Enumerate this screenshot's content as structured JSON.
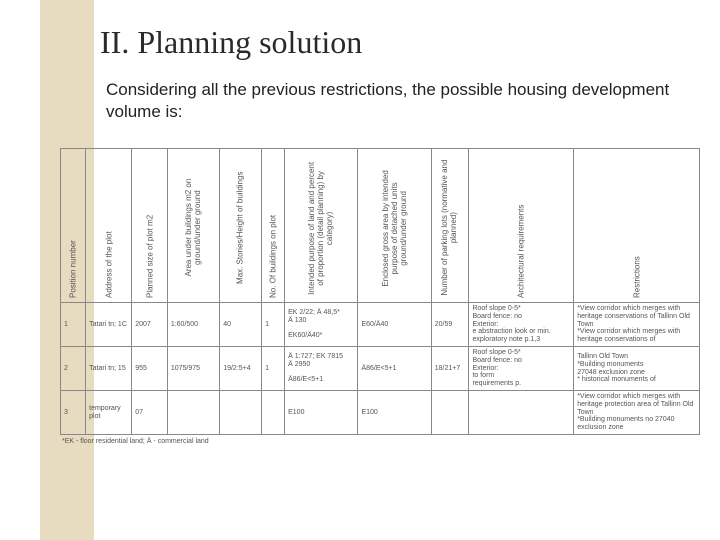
{
  "title": "II. Planning solution",
  "intro": "Considering all the previous restrictions, the possible housing development volume is:",
  "headers": {
    "pos": "Position number",
    "addr": "Address of the plot",
    "size": "Planned size of plot m2",
    "area": "Area under buildings m2 on ground/under ground",
    "max": "Max. Stories/Height of buildings",
    "no": "No. Of buildings on plot",
    "purp": "Intended purpose of land and percent of proportion (detail planning) by category)",
    "gross": "Enclosed gross area by intended purpose of detached units ground/under ground",
    "park": "Number of parking lots (normative and planned)",
    "arch": "Architectural requirements",
    "rest": "Restrictions"
  },
  "rows": [
    {
      "pos": "1",
      "addr": "Tatari tn; 1C",
      "size": "2007",
      "area": "1:60/500",
      "max": "40",
      "no": "1",
      "purp": "EK 2/22; Ä 48,5*\nÄ 130\n\nEK60/Ä40*",
      "gross": "E60/Ä40",
      "park": "20/59",
      "arch": "Roof slope 0-5*\nBoard fence: no\nExterior:\ne abstraction look or min.\nexploratory note p.1,3",
      "rest": "*View corridor which merges with heritage conservations of Tallinn Old Town\n*View corridor which merges with heritage conservations of"
    },
    {
      "pos": "2",
      "addr": "Tatari tn; 15",
      "size": "955",
      "area": "1075/975",
      "max": "19/2:5+4",
      "no": "1",
      "purp": "Ä 1:727; EK 7815\nÄ 2950\n\nÄ86/E<5+1",
      "gross": "Ä86/E<5+1",
      "park": "18/21+7",
      "arch": "Roof slope 0-5*\nBoard fence: no\nExterior:\nto form\nrequirements p.",
      "rest": "Tallinn Old Town\n*Building monuments\n27048 exclusion zone\n* historical monuments of"
    },
    {
      "pos": "3",
      "addr": "temporary plot",
      "size": "07",
      "area": "",
      "max": "",
      "no": "",
      "purp": "E100",
      "gross": "E100",
      "park": "",
      "arch": "",
      "rest": "*View corridor which merges with heritage protection area of Tallinn Old Town\n*Building monuments no 27040 exclusion zone"
    }
  ],
  "footnote": "*EK - floor residential land; Ä - commercial land"
}
